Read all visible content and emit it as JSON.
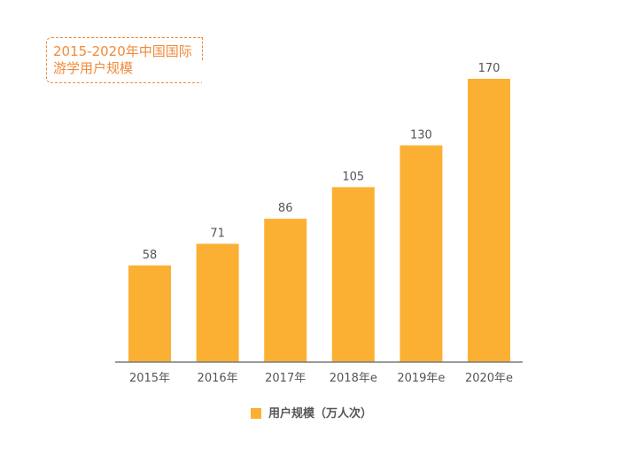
{
  "colors": {
    "bar": "#fbb034",
    "title": "#f08a3a",
    "text": "#555555",
    "axis": "#7a7a7a"
  },
  "chart_data": {
    "type": "bar",
    "title": "2015-2020年中国国际游学用户规模",
    "categories": [
      "2015年",
      "2016年",
      "2017年",
      "2018年e",
      "2019年e",
      "2020年e"
    ],
    "series": [
      {
        "name": "用户规模（万人次）",
        "values": [
          58,
          71,
          86,
          105,
          130,
          170
        ]
      }
    ],
    "ylim": [
      0,
      180
    ],
    "grid": false,
    "legend": "bottom",
    "data_labels": true
  }
}
